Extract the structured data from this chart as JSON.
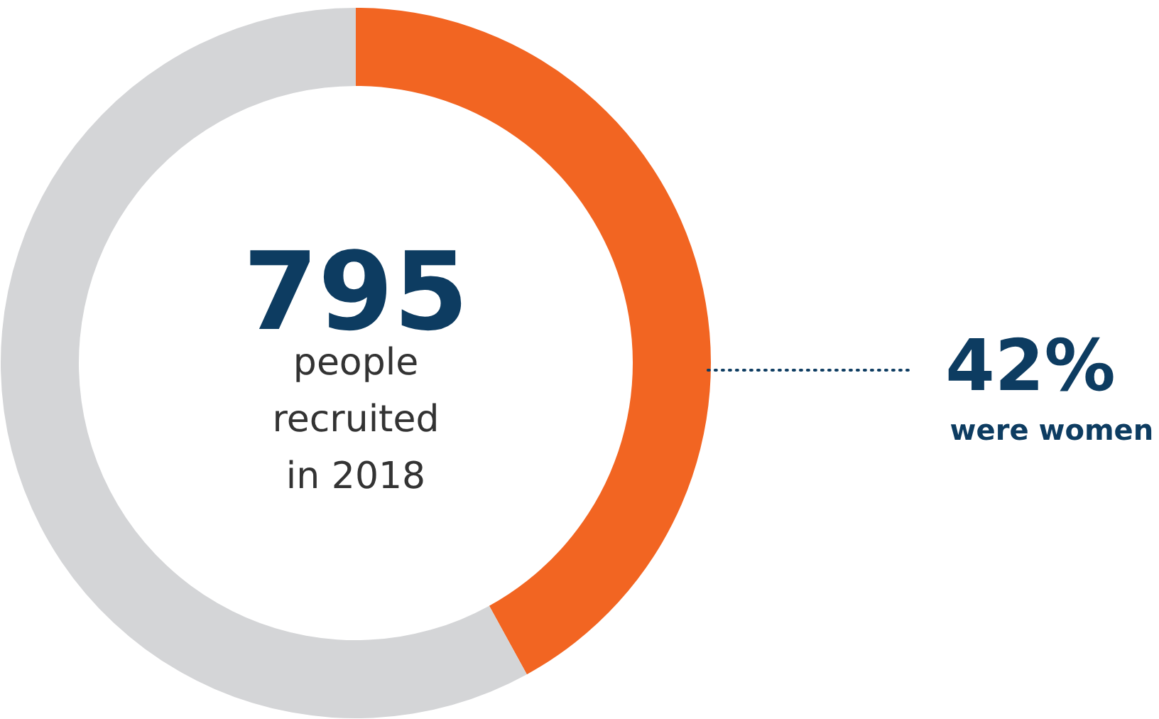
{
  "chart_data": {
    "type": "donut",
    "categories": [
      "were women",
      null
    ],
    "values": [
      42,
      58
    ],
    "colors": [
      "#f26522",
      "#d4d5d7"
    ],
    "value_labels": [
      "42%",
      null
    ],
    "annotations": [
      "795",
      "people recruited in 2018"
    ]
  }
}
